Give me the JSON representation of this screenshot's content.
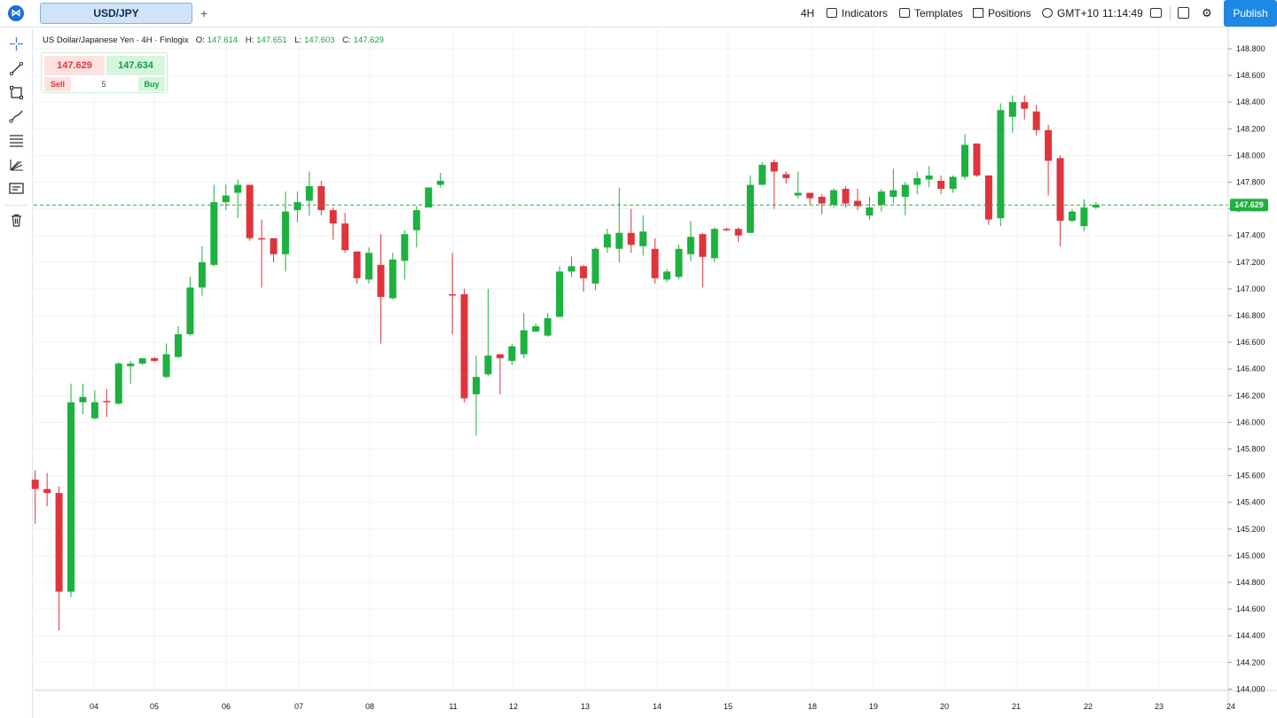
{
  "header": {
    "symbol_tab": "USD/JPY",
    "add_tab": "+",
    "interval": "4H",
    "indicators": "Indicators",
    "templates": "Templates",
    "positions": "Positions",
    "timezone": "GMT+10",
    "time": "11:14:49",
    "publish": "Publish"
  },
  "legend": {
    "title": "US Dollar/Japanese Yen · 4H · Finlogix",
    "open_label": "O:",
    "open": "147.614",
    "high_label": "H:",
    "high": "147.651",
    "low_label": "L:",
    "low": "147.603",
    "close_label": "C:",
    "close": "147.629"
  },
  "trade": {
    "sell_price": "147.629",
    "buy_price": "147.634",
    "sell_label": "Sell",
    "quantity": "5",
    "buy_label": "Buy"
  },
  "icons": [
    "crosshair-icon",
    "trend-line-icon",
    "rectangle-icon",
    "brush-icon",
    "fib-retracement-icon",
    "pitchfork-icon",
    "text-note-icon",
    "trash-icon",
    "logo-icon",
    "calendar-icon",
    "layout-icon",
    "gear-icon",
    "globe-icon",
    "positions-icon"
  ],
  "colors": {
    "up": "#1db13f",
    "down": "#e0343c",
    "price_line": "#1db13f",
    "grid": "#f0f1f4",
    "accent": "#1e88e5"
  },
  "chart_data": {
    "type": "candlestick",
    "symbol": "USD/JPY",
    "interval": "4H",
    "ylim": [
      144.0,
      148.9
    ],
    "yticks": [
      "148.800",
      "148.600",
      "148.400",
      "148.200",
      "148.000",
      "147.800",
      "147.600",
      "147.400",
      "147.200",
      "147.000",
      "146.800",
      "146.600",
      "146.400",
      "146.200",
      "146.000",
      "145.800",
      "145.600",
      "145.400",
      "145.200",
      "145.000",
      "144.800",
      "144.600",
      "144.400",
      "144.200",
      "144.000"
    ],
    "xticks": [
      "04",
      "05",
      "06",
      "07",
      "08",
      "11",
      "12",
      "13",
      "14",
      "15",
      "18",
      "19",
      "20",
      "21",
      "22",
      "23",
      "24"
    ],
    "current_price": "147.629",
    "candles": [
      [
        145.57,
        145.5,
        145.64,
        145.24
      ],
      [
        145.5,
        145.47,
        145.62,
        145.37
      ],
      [
        145.47,
        144.73,
        145.52,
        144.44
      ],
      [
        144.73,
        146.15,
        146.29,
        144.69
      ],
      [
        146.15,
        146.19,
        146.29,
        146.06
      ],
      [
        146.03,
        146.15,
        146.24,
        146.02
      ],
      [
        146.16,
        146.15,
        146.25,
        146.04
      ],
      [
        146.14,
        146.44,
        146.45,
        146.13
      ],
      [
        146.42,
        146.44,
        146.46,
        146.29
      ],
      [
        146.44,
        146.48,
        146.48,
        146.43
      ],
      [
        146.48,
        146.46,
        146.49,
        146.45
      ],
      [
        146.34,
        146.51,
        146.59,
        146.33
      ],
      [
        146.49,
        146.66,
        146.72,
        146.48
      ],
      [
        146.66,
        147.01,
        147.09,
        146.65
      ],
      [
        147.01,
        147.2,
        147.32,
        146.95
      ],
      [
        147.18,
        147.65,
        147.78,
        147.17
      ],
      [
        147.65,
        147.7,
        147.78,
        147.59
      ],
      [
        147.72,
        147.78,
        147.82,
        147.53
      ],
      [
        147.78,
        147.38,
        147.78,
        147.36
      ],
      [
        147.38,
        147.37,
        147.52,
        147.01
      ],
      [
        147.38,
        147.26,
        147.38,
        147.2
      ],
      [
        147.26,
        147.58,
        147.73,
        147.13
      ],
      [
        147.59,
        147.65,
        147.73,
        147.5
      ],
      [
        147.66,
        147.77,
        147.88,
        147.55
      ],
      [
        147.77,
        147.59,
        147.81,
        147.55
      ],
      [
        147.59,
        147.49,
        147.61,
        147.37
      ],
      [
        147.49,
        147.29,
        147.57,
        147.27
      ],
      [
        147.28,
        147.08,
        147.28,
        147.04
      ],
      [
        147.07,
        147.27,
        147.31,
        147.04
      ],
      [
        147.18,
        146.94,
        147.41,
        146.59
      ],
      [
        146.93,
        147.22,
        147.27,
        146.92
      ],
      [
        147.21,
        147.41,
        147.44,
        147.07
      ],
      [
        147.44,
        147.59,
        147.62,
        147.31
      ],
      [
        147.61,
        147.76,
        147.76,
        147.7
      ],
      [
        147.78,
        147.81,
        147.87,
        147.76
      ],
      [
        146.96,
        146.95,
        147.27,
        146.66
      ],
      [
        146.96,
        146.18,
        147.0,
        146.15
      ],
      [
        146.21,
        146.34,
        146.5,
        145.9
      ],
      [
        146.36,
        146.5,
        147.0,
        146.35
      ],
      [
        146.51,
        146.48,
        146.51,
        146.21
      ],
      [
        146.46,
        146.57,
        146.59,
        146.43
      ],
      [
        146.51,
        146.69,
        146.82,
        146.48
      ],
      [
        146.68,
        146.72,
        146.74,
        146.68
      ],
      [
        146.65,
        146.78,
        146.82,
        146.64
      ],
      [
        146.79,
        147.13,
        147.17,
        146.79
      ],
      [
        147.13,
        147.17,
        147.24,
        147.09
      ],
      [
        147.17,
        147.08,
        147.18,
        146.98
      ],
      [
        147.04,
        147.3,
        147.31,
        146.99
      ],
      [
        147.31,
        147.41,
        147.45,
        147.27
      ],
      [
        147.3,
        147.42,
        147.76,
        147.2
      ],
      [
        147.42,
        147.33,
        147.6,
        147.27
      ],
      [
        147.32,
        147.43,
        147.55,
        147.25
      ],
      [
        147.3,
        147.08,
        147.38,
        147.04
      ],
      [
        147.07,
        147.13,
        147.15,
        147.05
      ],
      [
        147.09,
        147.3,
        147.33,
        147.07
      ],
      [
        147.26,
        147.39,
        147.51,
        147.21
      ],
      [
        147.41,
        147.24,
        147.42,
        147.01
      ],
      [
        147.23,
        147.45,
        147.46,
        147.2
      ],
      [
        147.45,
        147.44,
        147.46,
        147.43
      ],
      [
        147.45,
        147.4,
        147.46,
        147.35
      ],
      [
        147.42,
        147.78,
        147.85,
        147.42
      ],
      [
        147.78,
        147.93,
        147.95,
        147.78
      ],
      [
        147.95,
        147.88,
        147.97,
        147.6
      ],
      [
        147.86,
        147.83,
        147.88,
        147.79
      ],
      [
        147.7,
        147.72,
        147.88,
        147.68
      ],
      [
        147.72,
        147.68,
        147.72,
        147.63
      ],
      [
        147.69,
        147.64,
        147.71,
        147.56
      ],
      [
        147.63,
        147.74,
        147.75,
        147.61
      ],
      [
        147.75,
        147.64,
        147.77,
        147.61
      ],
      [
        147.66,
        147.62,
        147.75,
        147.59
      ],
      [
        147.55,
        147.61,
        147.69,
        147.52
      ],
      [
        147.63,
        147.73,
        147.75,
        147.58
      ],
      [
        147.69,
        147.74,
        147.9,
        147.64
      ],
      [
        147.69,
        147.78,
        147.8,
        147.55
      ],
      [
        147.78,
        147.83,
        147.88,
        147.71
      ],
      [
        147.82,
        147.85,
        147.92,
        147.76
      ],
      [
        147.81,
        147.75,
        147.85,
        147.71
      ],
      [
        147.75,
        147.84,
        147.85,
        147.72
      ],
      [
        147.84,
        148.08,
        148.16,
        147.82
      ],
      [
        148.09,
        147.85,
        148.08,
        147.84
      ],
      [
        147.85,
        147.52,
        147.85,
        147.48
      ],
      [
        147.53,
        148.34,
        148.39,
        147.47
      ],
      [
        148.29,
        148.4,
        148.45,
        148.17
      ],
      [
        148.4,
        148.35,
        148.45,
        148.27
      ],
      [
        148.33,
        148.19,
        148.38,
        148.15
      ],
      [
        148.19,
        147.96,
        148.23,
        147.7
      ],
      [
        147.98,
        147.51,
        148.0,
        147.32
      ],
      [
        147.51,
        147.58,
        147.6,
        147.5
      ],
      [
        147.47,
        147.61,
        147.67,
        147.43
      ],
      [
        147.61,
        147.63,
        147.65,
        147.6
      ]
    ]
  }
}
